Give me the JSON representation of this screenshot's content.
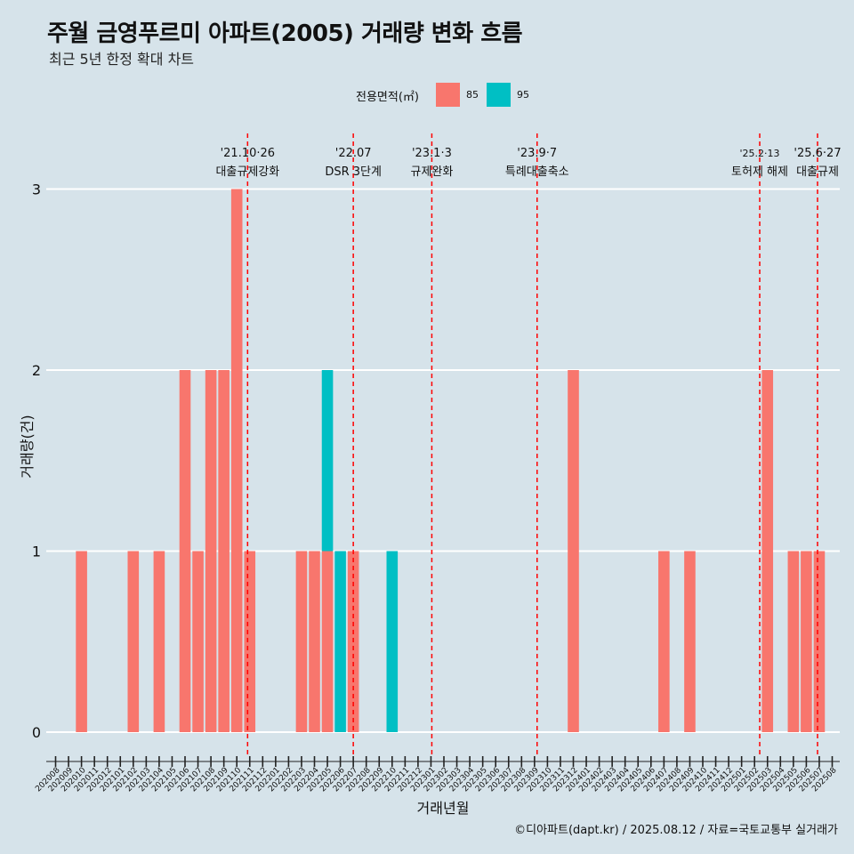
{
  "title": "주월 금영푸르미 아파트(2005) 거래량 변화 흐름",
  "subtitle": "최근 5년 한정 확대 차트",
  "caption": "©디아파트(dapt.kr) / 2025.08.12 / 자료=국토교통부 실거래가",
  "legend": {
    "title": "전용면적(㎡)",
    "items": [
      {
        "label": "85",
        "color": "#f8766d"
      },
      {
        "label": "95",
        "color": "#00bfc4"
      }
    ]
  },
  "chart_data": {
    "type": "bar",
    "stacked": true,
    "xlabel": "거래년월",
    "ylabel": "거래량(건)",
    "ylim": [
      0,
      3
    ],
    "yticks": [
      0,
      1,
      2,
      3
    ],
    "grid": "horizontal",
    "legend_position": "top",
    "categories": [
      "202008",
      "202009",
      "202010",
      "202011",
      "202012",
      "202101",
      "202102",
      "202103",
      "202104",
      "202105",
      "202106",
      "202107",
      "202108",
      "202109",
      "202110",
      "202111",
      "202112",
      "202201",
      "202202",
      "202203",
      "202204",
      "202205",
      "202206",
      "202207",
      "202208",
      "202209",
      "202210",
      "202211",
      "202212",
      "202301",
      "202302",
      "202303",
      "202304",
      "202305",
      "202306",
      "202307",
      "202308",
      "202309",
      "202310",
      "202311",
      "202312",
      "202401",
      "202402",
      "202403",
      "202404",
      "202405",
      "202406",
      "202407",
      "202408",
      "202409",
      "202410",
      "202411",
      "202412",
      "202501",
      "202502",
      "202503",
      "202504",
      "202505",
      "202506",
      "202507",
      "202508"
    ],
    "series": [
      {
        "name": "85",
        "color": "#f8766d",
        "values": [
          0,
          0,
          1,
          0,
          0,
          0,
          1,
          0,
          1,
          0,
          2,
          1,
          2,
          2,
          3,
          1,
          0,
          0,
          0,
          1,
          1,
          1,
          0,
          1,
          0,
          0,
          0,
          0,
          0,
          0,
          0,
          0,
          0,
          0,
          0,
          0,
          0,
          0,
          0,
          0,
          2,
          0,
          0,
          0,
          0,
          0,
          0,
          1,
          0,
          1,
          0,
          0,
          0,
          0,
          0,
          2,
          0,
          1,
          1,
          1,
          0
        ]
      },
      {
        "name": "95",
        "color": "#00bfc4",
        "values": [
          0,
          0,
          0,
          0,
          0,
          0,
          0,
          0,
          0,
          0,
          0,
          0,
          0,
          0,
          0,
          0,
          0,
          0,
          0,
          0,
          0,
          1,
          1,
          0,
          0,
          0,
          1,
          0,
          0,
          0,
          0,
          0,
          0,
          0,
          0,
          0,
          0,
          0,
          0,
          0,
          0,
          0,
          0,
          0,
          0,
          0,
          0,
          0,
          0,
          0,
          0,
          0,
          0,
          0,
          0,
          0,
          0,
          0,
          0,
          0,
          0
        ]
      }
    ],
    "annotations": [
      {
        "date": "2021-10-26",
        "label": "'21.10·26",
        "text": "대출규제강화"
      },
      {
        "date": "2022-07-01",
        "label": "'22.07",
        "text": "DSR 3단계"
      },
      {
        "date": "2023-01-03",
        "label": "'23.1·3",
        "text": "규제완화"
      },
      {
        "date": "2023-09-07",
        "label": "'23.9·7",
        "text": "특례대출축소"
      },
      {
        "date": "2025-02-13",
        "label": "'25.2·13",
        "text": "토허제 해제"
      },
      {
        "date": "2025-06-27",
        "label": "'25.6·27",
        "text": "대출규제"
      }
    ],
    "annotation_color": "#ff0000"
  }
}
